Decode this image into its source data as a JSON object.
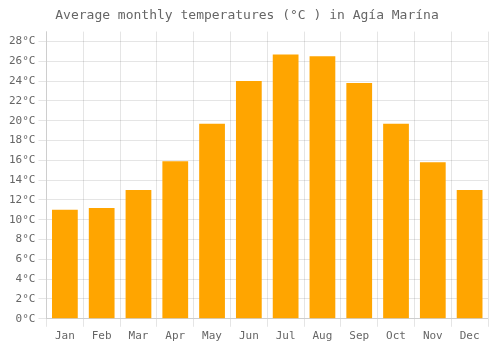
{
  "chart_data": {
    "type": "bar",
    "title": "Average monthly temperatures (°C ) in Agía Marína",
    "categories": [
      "Jan",
      "Feb",
      "Mar",
      "Apr",
      "May",
      "Jun",
      "Jul",
      "Aug",
      "Sep",
      "Oct",
      "Nov",
      "Dec"
    ],
    "values": [
      11.0,
      11.2,
      13.0,
      15.9,
      19.7,
      24.0,
      26.7,
      26.5,
      23.8,
      19.7,
      15.8,
      13.0
    ],
    "color": "#FFA500",
    "ylim": [
      0,
      29
    ],
    "yticks": [
      {
        "value": 0,
        "label": "0°C"
      },
      {
        "value": 2,
        "label": "2°C"
      },
      {
        "value": 4,
        "label": "4°C"
      },
      {
        "value": 6,
        "label": "6°C"
      },
      {
        "value": 8,
        "label": "8°C"
      },
      {
        "value": 10,
        "label": "10°C"
      },
      {
        "value": 12,
        "label": "12°C"
      },
      {
        "value": 14,
        "label": "14°C"
      },
      {
        "value": 16,
        "label": "16°C"
      },
      {
        "value": 18,
        "label": "18°C"
      },
      {
        "value": 20,
        "label": "20°C"
      },
      {
        "value": 22,
        "label": "22°C"
      },
      {
        "value": 24,
        "label": "24°C"
      },
      {
        "value": 26,
        "label": "26°C"
      },
      {
        "value": 28,
        "label": "28°C"
      }
    ],
    "grid": true
  }
}
